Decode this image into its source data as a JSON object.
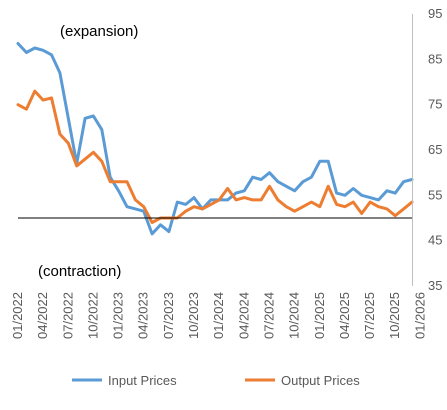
{
  "chart_data": {
    "type": "line",
    "title": "",
    "xlabel": "",
    "ylabel": "",
    "ylim": [
      35,
      95
    ],
    "yticks": [
      35,
      45,
      55,
      65,
      75,
      85,
      95
    ],
    "y_axis_side": "right",
    "grid": false,
    "reference_line": 50,
    "x_tick_labels": [
      "01/2022",
      "04/2022",
      "07/2022",
      "10/2022",
      "01/2023",
      "04/2023",
      "07/2023",
      "10/2023",
      "01/2024",
      "04/2024",
      "07/2024",
      "10/2024",
      "01/2025",
      "04/2025",
      "07/2025",
      "10/2025",
      "01/2026"
    ],
    "annotations": {
      "expansion": "(expansion)",
      "contraction": "(contraction)"
    },
    "legend_position": "bottom",
    "series": [
      {
        "name": "Input Prices",
        "color": "#5B9BD5",
        "values": [
          88.5,
          86.5,
          87.5,
          87,
          86,
          82,
          72,
          62,
          72,
          72.5,
          69.5,
          59,
          56,
          52.5,
          52,
          51.5,
          46.5,
          48.5,
          47,
          53.5,
          53,
          54.5,
          52,
          54,
          54,
          54,
          55.5,
          56,
          59,
          58.5,
          60,
          58,
          57,
          56,
          58,
          59,
          62.5,
          62.5,
          55.5,
          55,
          56.5,
          55,
          54.5,
          54,
          56,
          55.5,
          58,
          58.5
        ]
      },
      {
        "name": "Output Prices",
        "color": "#ED7D31",
        "values": [
          75,
          74,
          78,
          76,
          76.5,
          68.5,
          66.5,
          61.5,
          63,
          64.5,
          62.5,
          58,
          58,
          58,
          54,
          52.5,
          49,
          50,
          50,
          50,
          51.5,
          52.5,
          52,
          53,
          54,
          56.5,
          54,
          54.5,
          54,
          54,
          57,
          54,
          52.5,
          51.5,
          52.5,
          53.5,
          52.5,
          57,
          53,
          52.5,
          53.5,
          51,
          53.5,
          52.5,
          52,
          50.5,
          52,
          53.5
        ]
      }
    ]
  }
}
